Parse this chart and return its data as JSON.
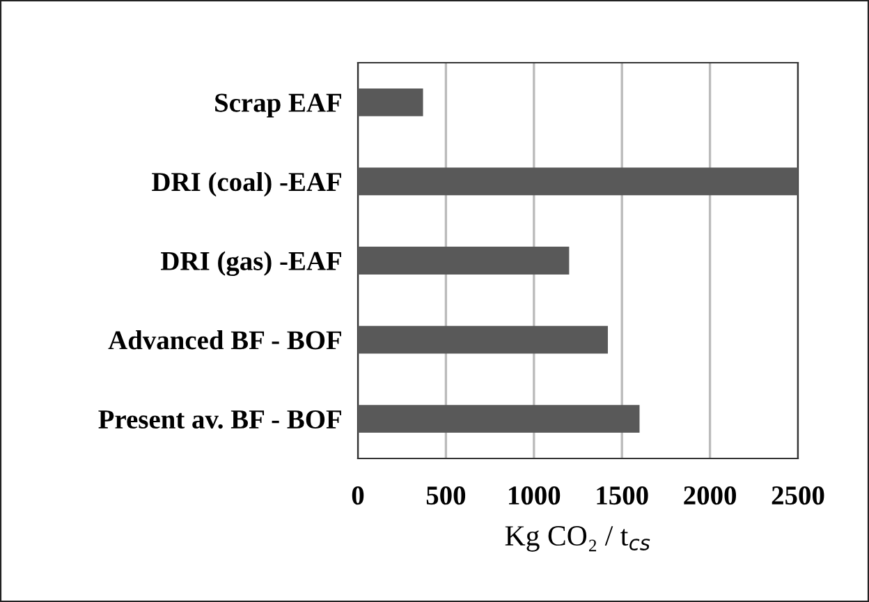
{
  "chart_data": {
    "type": "bar",
    "orientation": "horizontal",
    "categories": [
      "Scrap EAF",
      "DRI (coal) -EAF",
      "DRI (gas) -EAF",
      "Advanced BF - BOF",
      "Present av. BF - BOF"
    ],
    "values": [
      370,
      2500,
      1200,
      1420,
      1600
    ],
    "color": "#595959",
    "xlabel": "Kg CO₂ / t$_{cs}$",
    "xlim": [
      0,
      2500
    ],
    "xticks": [
      0,
      500,
      1000,
      1500,
      2000,
      2500
    ],
    "grid": "x"
  }
}
